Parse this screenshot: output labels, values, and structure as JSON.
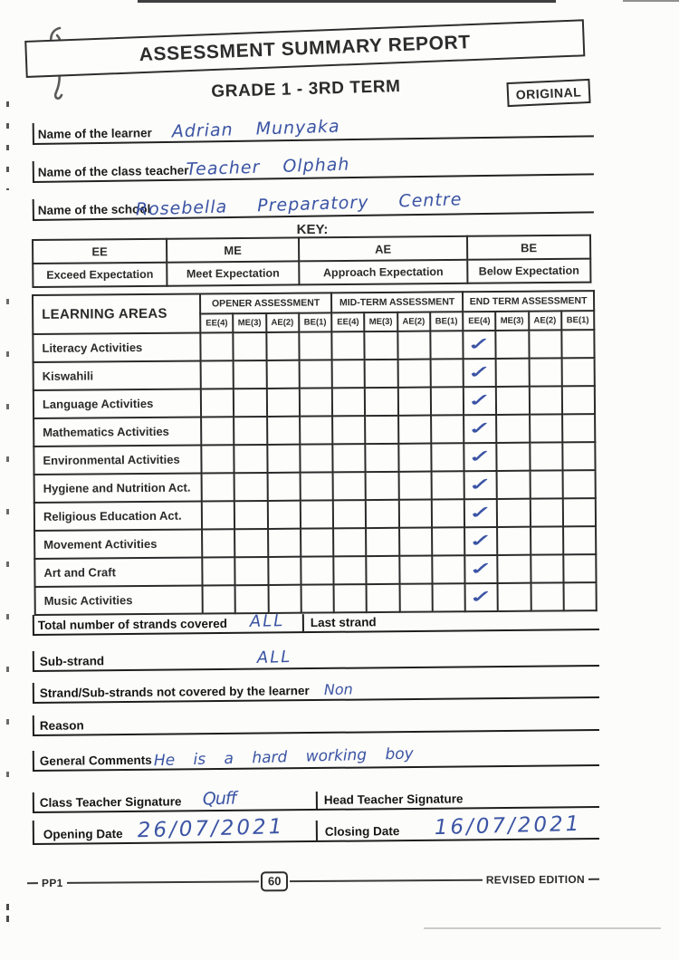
{
  "header": {
    "title": "ASSESSMENT SUMMARY REPORT",
    "subtitle": "GRADE 1 - 3RD TERM",
    "stamp": "ORIGINAL"
  },
  "learner_info": {
    "fields": [
      {
        "label": "Name of the learner",
        "value": "Adrian Munyaka"
      },
      {
        "label": "Name of the class teacher",
        "value": "Teacher Olphah"
      },
      {
        "label": "Name of the school",
        "value": "Rosebella Preparatory Centre"
      }
    ]
  },
  "key": {
    "title": "KEY:",
    "columns": [
      {
        "code": "EE",
        "meaning": "Exceed Expectation"
      },
      {
        "code": "ME",
        "meaning": "Meet Expectation"
      },
      {
        "code": "AE",
        "meaning": "Approach Expectation"
      },
      {
        "code": "BE",
        "meaning": "Below Expectation"
      }
    ]
  },
  "assessment_table": {
    "corner_header": "LEARNING AREAS",
    "groups": [
      "OPENER ASSESSMENT",
      "MID-TERM ASSESSMENT",
      "END TERM ASSESSMENT"
    ],
    "group_keys": [
      "opener",
      "mid_term",
      "end_term"
    ],
    "subcolumns": [
      "EE(4)",
      "ME(3)",
      "AE(2)",
      "BE(1)"
    ],
    "mark_glyph": "✓",
    "rows": [
      {
        "area": "Literacy Activities",
        "marks": {
          "end_term": "EE(4)"
        }
      },
      {
        "area": "Kiswahili",
        "marks": {
          "end_term": "EE(4)"
        }
      },
      {
        "area": "Language Activities",
        "marks": {
          "end_term": "EE(4)"
        }
      },
      {
        "area": "Mathematics Activities",
        "marks": {
          "end_term": "EE(4)"
        }
      },
      {
        "area": "Environmental Activities",
        "marks": {
          "end_term": "EE(4)"
        }
      },
      {
        "area": "Hygiene and Nutrition Act.",
        "marks": {
          "end_term": "EE(4)"
        }
      },
      {
        "area": "Religious Education Act.",
        "marks": {
          "end_term": "EE(4)"
        }
      },
      {
        "area": "Movement Activities",
        "marks": {
          "end_term": "EE(4)"
        }
      },
      {
        "area": "Art and Craft",
        "marks": {
          "end_term": "EE(4)"
        }
      },
      {
        "area": "Music Activities",
        "marks": {
          "end_term": "EE(4)"
        }
      }
    ]
  },
  "strands": {
    "total_label": "Total number of strands covered",
    "total_value": "ALL",
    "last_strand_label": "Last strand",
    "last_strand_value": "",
    "sub_strand_label": "Sub-strand",
    "sub_strand_value": "ALL",
    "not_covered_label": "Strand/Sub-strands not covered by the learner",
    "not_covered_value": "Non",
    "reason_label": "Reason",
    "reason_value": "",
    "comments_label": "General Comments",
    "comments_value": "He is a hard working boy"
  },
  "signoff": {
    "class_teacher_label": "Class Teacher Signature",
    "class_teacher_signature": "Quff",
    "head_teacher_label": "Head Teacher Signature",
    "head_teacher_signature": "",
    "opening_date_label": "Opening Date",
    "opening_date_value": "26/07/2021",
    "closing_date_label": "Closing Date",
    "closing_date_value": "16/07/2021"
  },
  "footer": {
    "left_code": "PP1",
    "page_number": "60",
    "right_text": "REVISED EDITION"
  },
  "colors": {
    "ink": "#2b2b2b",
    "handwriting_blue": "#3b54a4"
  }
}
